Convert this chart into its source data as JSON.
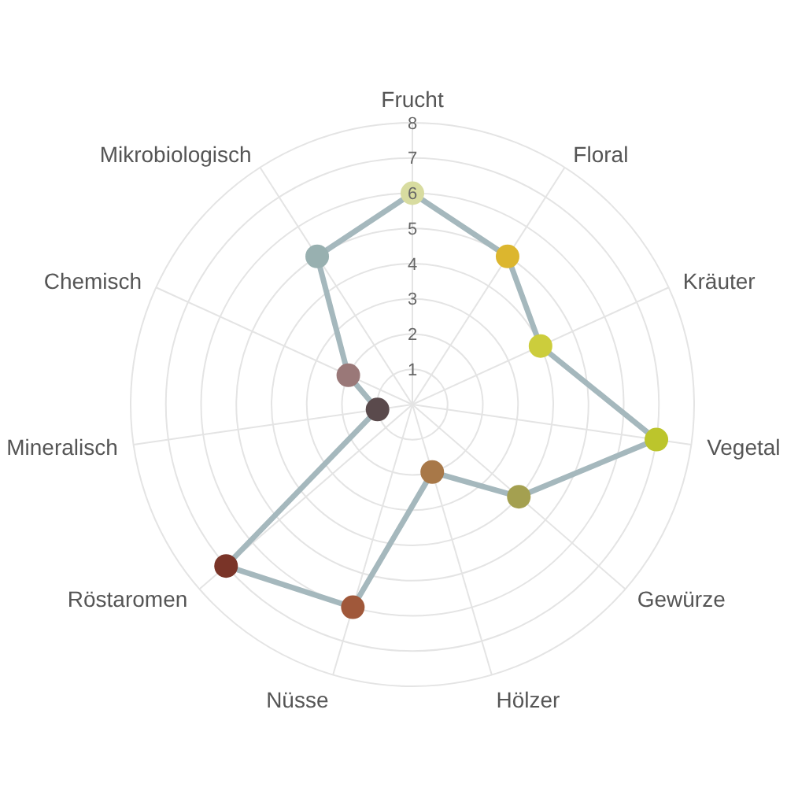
{
  "chart_data": {
    "type": "radar",
    "categories": [
      "Frucht",
      "Floral",
      "Kräuter",
      "Vegetal",
      "Gewürze",
      "Hölzer",
      "Nüsse",
      "Röstaromen",
      "Mineralisch",
      "Chemisch",
      "Mikrobiologisch"
    ],
    "series": [
      {
        "color": "#a5b8bd",
        "colors": [
          "#d8dca0",
          "#dcb62e",
          "#cccd3c",
          "#bcc52c",
          "#a4a050",
          "#a87848",
          "#a0583a",
          "#7a3428",
          "#5a4a4c",
          "#9a7878",
          "#98b0b0"
        ],
        "values": [
          6,
          5,
          4,
          7,
          4,
          2,
          6,
          7,
          1,
          2,
          5
        ]
      }
    ],
    "ylim": [
      0,
      8
    ],
    "yticks": [
      1,
      2,
      3,
      4,
      5,
      6,
      7,
      8
    ],
    "grid": true,
    "marker": "circle"
  }
}
